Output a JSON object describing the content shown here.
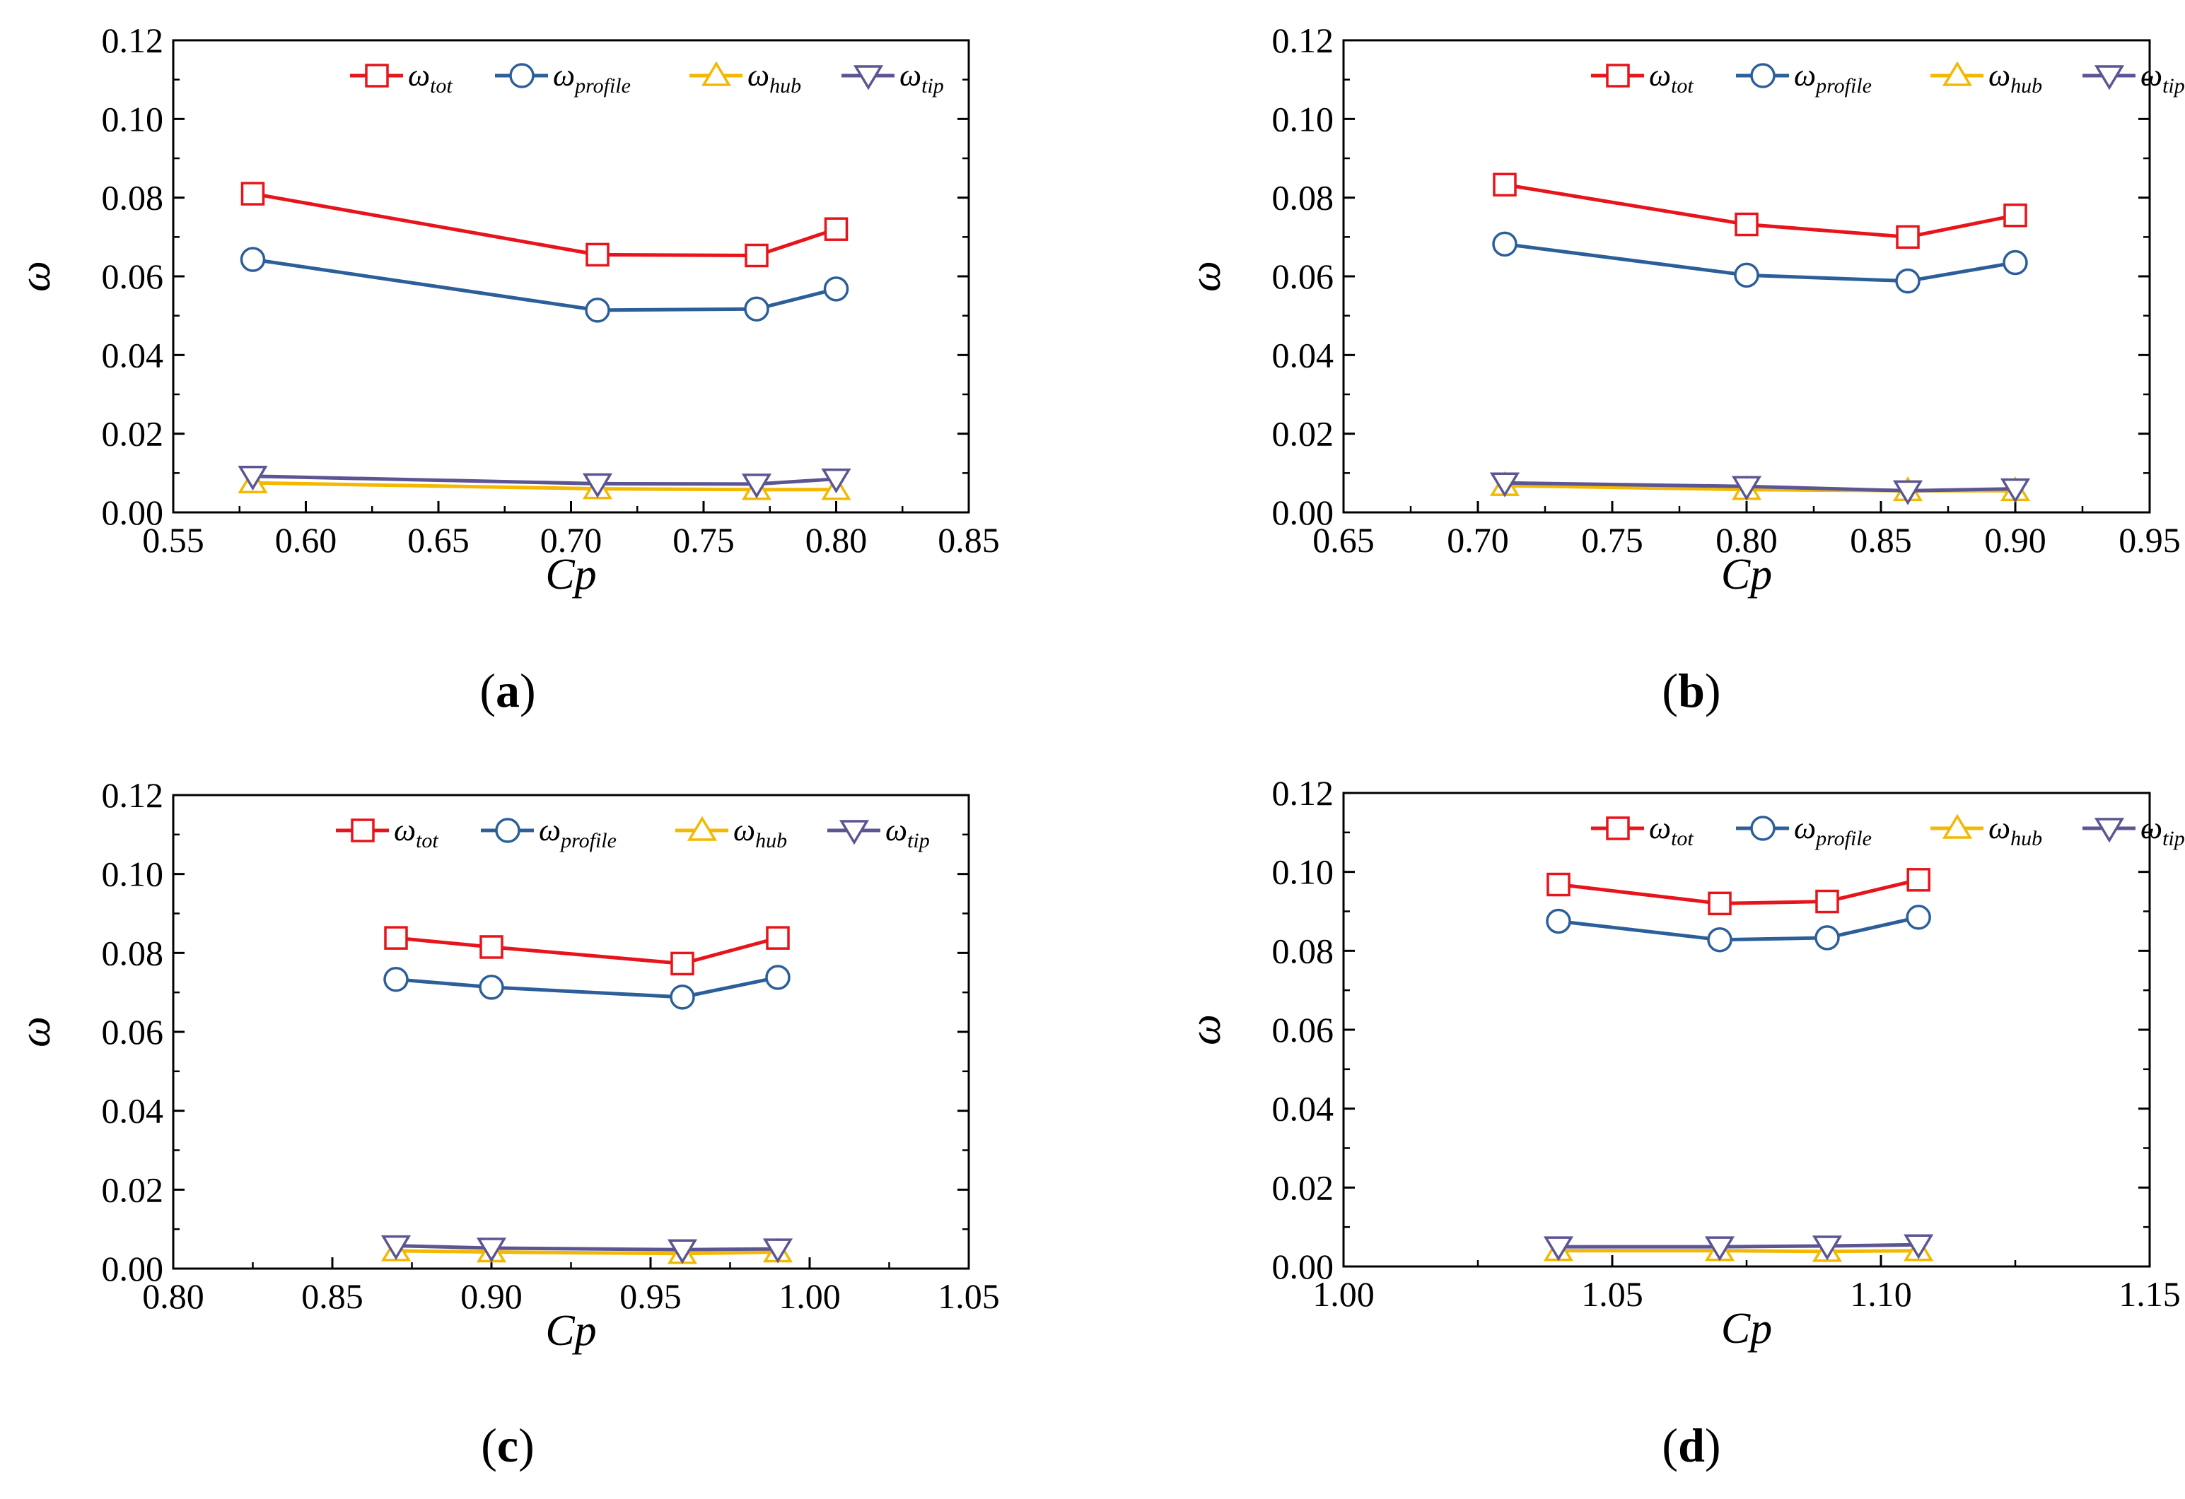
{
  "chart_data": [
    {
      "type": "line",
      "caption": "a",
      "xlabel": "Cp",
      "ylabel": "ω",
      "xlim": [
        0.55,
        0.85
      ],
      "ylim": [
        0,
        0.12
      ],
      "xticks": [
        "0.55",
        "0.60",
        "0.65",
        "0.70",
        "0.75",
        "0.80",
        "0.85"
      ],
      "yticks": [
        "0.00",
        "0.02",
        "0.04",
        "0.06",
        "0.08",
        "0.10",
        "0.12"
      ],
      "x": [
        0.58,
        0.71,
        0.77,
        0.8
      ],
      "series": [
        {
          "key": "tot",
          "values": [
            0.081,
            0.0655,
            0.0653,
            0.072
          ]
        },
        {
          "key": "profile",
          "values": [
            0.0643,
            0.0514,
            0.0517,
            0.0568
          ]
        },
        {
          "key": "hub",
          "values": [
            0.0075,
            0.006,
            0.0058,
            0.0058
          ]
        },
        {
          "key": "tip",
          "values": [
            0.0092,
            0.0073,
            0.0072,
            0.0085
          ]
        }
      ]
    },
    {
      "type": "line",
      "caption": "b",
      "xlabel": "Cp",
      "ylabel": "ω",
      "xlim": [
        0.65,
        0.95
      ],
      "ylim": [
        0,
        0.12
      ],
      "xticks": [
        "0.65",
        "0.70",
        "0.75",
        "0.80",
        "0.85",
        "0.90",
        "0.95"
      ],
      "yticks": [
        "0.00",
        "0.02",
        "0.04",
        "0.06",
        "0.08",
        "0.10",
        "0.12"
      ],
      "x": [
        0.71,
        0.8,
        0.86,
        0.9
      ],
      "series": [
        {
          "key": "tot",
          "values": [
            0.0833,
            0.0732,
            0.07,
            0.0755
          ]
        },
        {
          "key": "profile",
          "values": [
            0.0682,
            0.0603,
            0.0588,
            0.0635
          ]
        },
        {
          "key": "hub",
          "values": [
            0.0068,
            0.0058,
            0.0055,
            0.0055
          ]
        },
        {
          "key": "tip",
          "values": [
            0.0075,
            0.0066,
            0.0055,
            0.006
          ]
        }
      ]
    },
    {
      "type": "line",
      "caption": "c",
      "xlabel": "Cp",
      "ylabel": "ω",
      "xlim": [
        0.8,
        1.05
      ],
      "ylim": [
        0,
        0.12
      ],
      "xticks": [
        "0.80",
        "0.85",
        "0.90",
        "0.95",
        "1.00",
        "1.05"
      ],
      "yticks": [
        "0.00",
        "0.02",
        "0.04",
        "0.06",
        "0.08",
        "0.10",
        "0.12"
      ],
      "x": [
        0.87,
        0.9,
        0.96,
        0.99
      ],
      "series": [
        {
          "key": "tot",
          "values": [
            0.0838,
            0.0815,
            0.0773,
            0.0838
          ]
        },
        {
          "key": "profile",
          "values": [
            0.0733,
            0.0713,
            0.0688,
            0.0738
          ]
        },
        {
          "key": "hub",
          "values": [
            0.0045,
            0.0042,
            0.0038,
            0.0042
          ]
        },
        {
          "key": "tip",
          "values": [
            0.0058,
            0.0052,
            0.0048,
            0.005
          ]
        }
      ]
    },
    {
      "type": "line",
      "caption": "d",
      "xlabel": "Cp",
      "ylabel": "ω",
      "xlim": [
        1.0,
        1.15
      ],
      "ylim": [
        0,
        0.12
      ],
      "xticks": [
        "1.00",
        "1.05",
        "1.10",
        "1.15"
      ],
      "yticks": [
        "0.00",
        "0.02",
        "0.04",
        "0.06",
        "0.08",
        "0.10",
        "0.12"
      ],
      "x": [
        1.04,
        1.07,
        1.09,
        1.107
      ],
      "series": [
        {
          "key": "tot",
          "values": [
            0.0968,
            0.092,
            0.0925,
            0.098
          ]
        },
        {
          "key": "profile",
          "values": [
            0.0875,
            0.0828,
            0.0833,
            0.0885
          ]
        },
        {
          "key": "hub",
          "values": [
            0.004,
            0.004,
            0.0038,
            0.004
          ]
        },
        {
          "key": "tip",
          "values": [
            0.005,
            0.005,
            0.0052,
            0.0055
          ]
        }
      ]
    }
  ],
  "legend": {
    "symbol": "ω",
    "entries": [
      {
        "key": "tot",
        "subscript": "tot",
        "color": "#e8141b",
        "marker": "square"
      },
      {
        "key": "profile",
        "subscript": "profile",
        "color": "#2c5f9a",
        "marker": "circle"
      },
      {
        "key": "hub",
        "subscript": "hub",
        "color": "#f3b800",
        "marker": "triangle-up"
      },
      {
        "key": "tip",
        "subscript": "tip",
        "color": "#5b5693",
        "marker": "triangle-down"
      }
    ]
  }
}
